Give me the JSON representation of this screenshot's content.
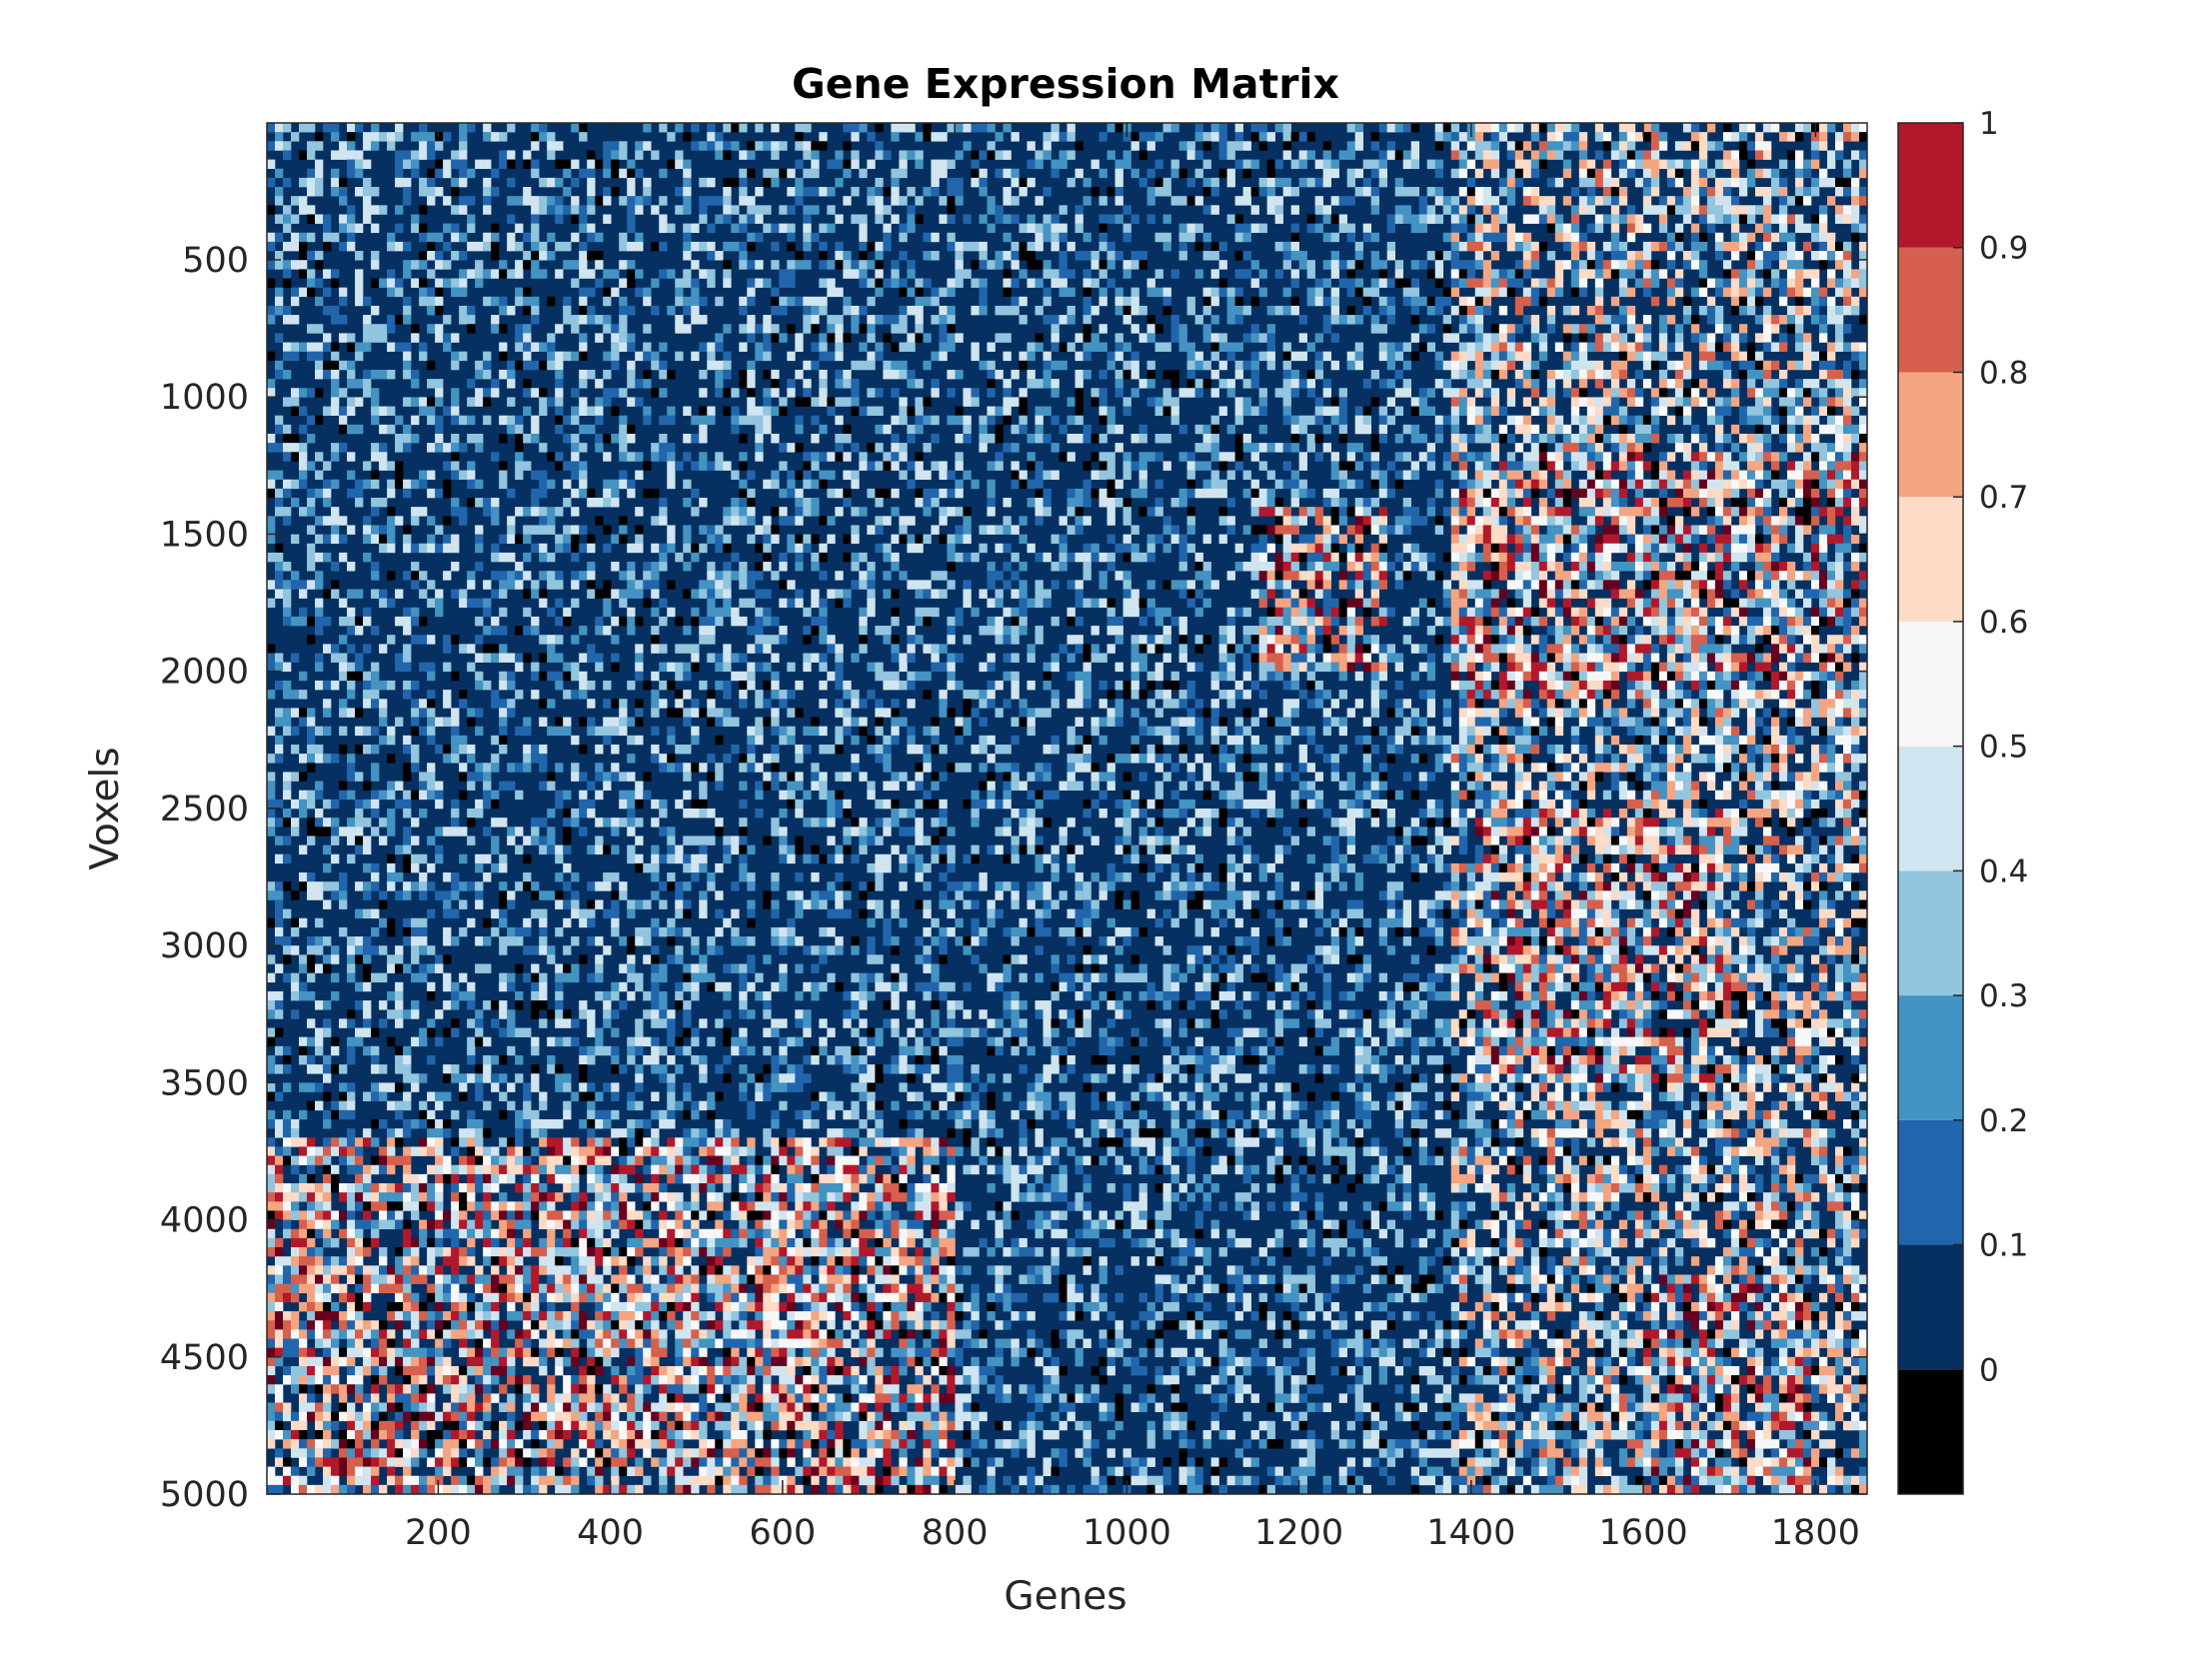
{
  "chart_data": {
    "type": "heatmap",
    "title": "Gene Expression Matrix",
    "xlabel": "Genes",
    "ylabel": "Voxels",
    "xlim": [
      1,
      1860
    ],
    "ylim": [
      1,
      5000
    ],
    "y_reversed": true,
    "x_ticks": [
      200,
      400,
      600,
      800,
      1000,
      1200,
      1400,
      1600,
      1800
    ],
    "x_tick_labels": [
      "200",
      "400",
      "600",
      "800",
      "1000",
      "1200",
      "1400",
      "1600",
      "1800"
    ],
    "y_ticks": [
      500,
      1000,
      1500,
      2000,
      2500,
      3000,
      3500,
      4000,
      4500,
      5000
    ],
    "y_tick_labels": [
      "500",
      "1000",
      "1500",
      "2000",
      "2500",
      "3000",
      "3500",
      "4000",
      "4500",
      "5000"
    ],
    "colorbar": {
      "range": [
        -0.1,
        1.0
      ],
      "ticks": [
        0,
        0.1,
        0.2,
        0.3,
        0.4,
        0.5,
        0.6,
        0.7,
        0.8,
        0.9,
        1
      ],
      "tick_labels": [
        "0",
        "0.1",
        "0.2",
        "0.3",
        "0.4",
        "0.5",
        "0.6",
        "0.7",
        "0.8",
        "0.9",
        "1"
      ],
      "levels": [
        {
          "from": -0.1,
          "to": 0.0,
          "color": "#000000"
        },
        {
          "from": 0.0,
          "to": 0.1,
          "color": "#053061"
        },
        {
          "from": 0.1,
          "to": 0.2,
          "color": "#2166ac"
        },
        {
          "from": 0.2,
          "to": 0.3,
          "color": "#4393c3"
        },
        {
          "from": 0.3,
          "to": 0.4,
          "color": "#92c5de"
        },
        {
          "from": 0.4,
          "to": 0.5,
          "color": "#d1e5f0"
        },
        {
          "from": 0.5,
          "to": 0.6,
          "color": "#f7f7f7"
        },
        {
          "from": 0.6,
          "to": 0.7,
          "color": "#fddbc7"
        },
        {
          "from": 0.7,
          "to": 0.8,
          "color": "#f4a582"
        },
        {
          "from": 0.8,
          "to": 0.9,
          "color": "#d6604d"
        },
        {
          "from": 0.9,
          "to": 1.0,
          "color": "#b2182b"
        },
        {
          "from": 1.0,
          "to": 1.1,
          "color": "#67001f"
        }
      ]
    },
    "matrix_summary": {
      "dominant_value": 0.05,
      "high_value_regions": [
        {
          "genes": [
            1150,
            1300
          ],
          "voxels": [
            1400,
            2000
          ]
        },
        {
          "genes": [
            1380,
            1860
          ],
          "voxels": [
            1200,
            2100
          ]
        },
        {
          "genes": [
            1400,
            1700
          ],
          "voxels": [
            2500,
            3500
          ]
        },
        {
          "genes": [
            1,
            800
          ],
          "voxels": [
            3700,
            4300
          ]
        },
        {
          "genes": [
            1,
            800
          ],
          "voxels": [
            4300,
            5000
          ]
        },
        {
          "genes": [
            1600,
            1800
          ],
          "voxels": [
            4200,
            5000
          ]
        }
      ]
    }
  }
}
